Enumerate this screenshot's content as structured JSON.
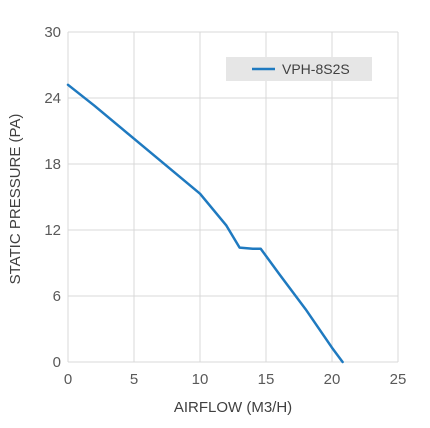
{
  "chart_data": {
    "type": "line",
    "title": "",
    "xlabel": "AIRFLOW (M3/H)",
    "ylabel": "STATIC PRESSURE (PA)",
    "xlim": [
      0,
      25
    ],
    "ylim": [
      0,
      30
    ],
    "xticks": [
      "0",
      "5",
      "10",
      "15",
      "20",
      "25"
    ],
    "yticks": [
      "0",
      "6",
      "12",
      "18",
      "24",
      "30"
    ],
    "grid": true,
    "legend_position": "top-right",
    "series": [
      {
        "name": "VPH-8S2S",
        "color": "#1f7ac0",
        "x": [
          0,
          2,
          4,
          6,
          8,
          10,
          12,
          13,
          14,
          14.6,
          16,
          18,
          20,
          20.8
        ],
        "y": [
          25.2,
          23.3,
          21.3,
          19.3,
          17.3,
          15.3,
          12.4,
          10.4,
          10.3,
          10.3,
          8.0,
          4.8,
          1.3,
          0
        ]
      }
    ]
  }
}
